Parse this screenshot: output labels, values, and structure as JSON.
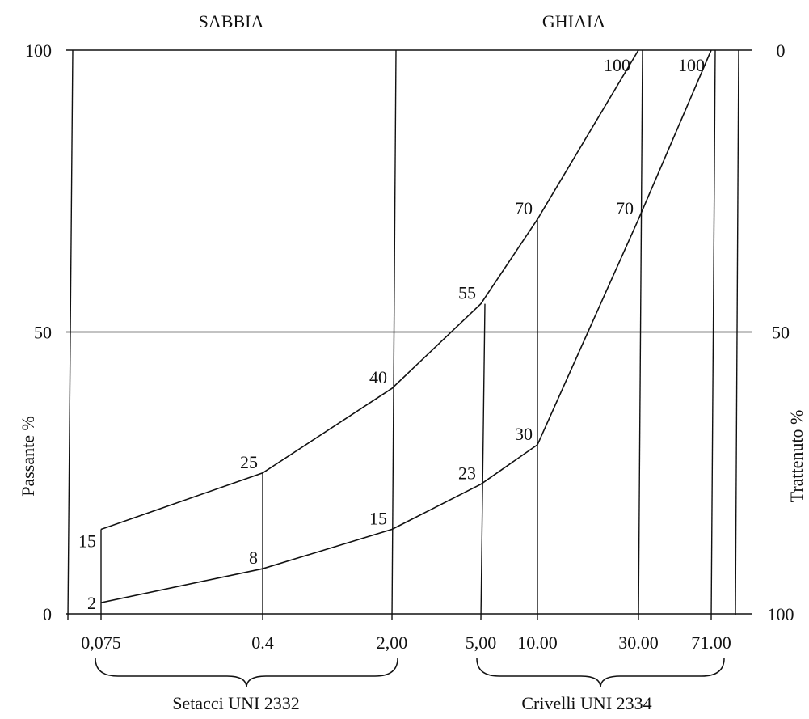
{
  "chart_data": {
    "type": "line",
    "title": "",
    "xscale": "log",
    "top_labels": [
      "SABBIA",
      "GHIAIA"
    ],
    "ylabel_left": "Passante %",
    "ylabel_right": "Trattenuto %",
    "ylim": [
      0,
      100
    ],
    "y_ticks_left": [
      "0",
      "50",
      "100"
    ],
    "y_ticks_right": [
      "100",
      "50",
      "0"
    ],
    "x_ticks": [
      "0,075",
      "0.4",
      "2,00",
      "5,00",
      "10.00",
      "30.00",
      "71.00"
    ],
    "x_values": [
      0.075,
      0.4,
      2.0,
      5.0,
      10.0,
      30.0,
      71.0
    ],
    "group_labels": [
      "Setacci UNI 2332",
      "Crivelli UNI 2334"
    ],
    "series": [
      {
        "x": [
          0.075,
          0.4,
          2.0,
          5.0,
          10.0,
          30.0
        ],
        "values": [
          15,
          25,
          40,
          55,
          70,
          100
        ]
      },
      {
        "x": [
          0.075,
          0.4,
          2.0,
          5.0,
          10.0,
          30.0,
          71.0
        ],
        "values": [
          2,
          8,
          15,
          23,
          30,
          70,
          100
        ]
      }
    ],
    "data_labels": [
      {
        "series": 0,
        "labels": [
          "15",
          "25",
          "40",
          "55",
          "70",
          "100"
        ]
      },
      {
        "series": 1,
        "labels": [
          "2",
          "8",
          "15",
          "23",
          "30",
          "70",
          "100"
        ]
      }
    ],
    "grid": true
  }
}
